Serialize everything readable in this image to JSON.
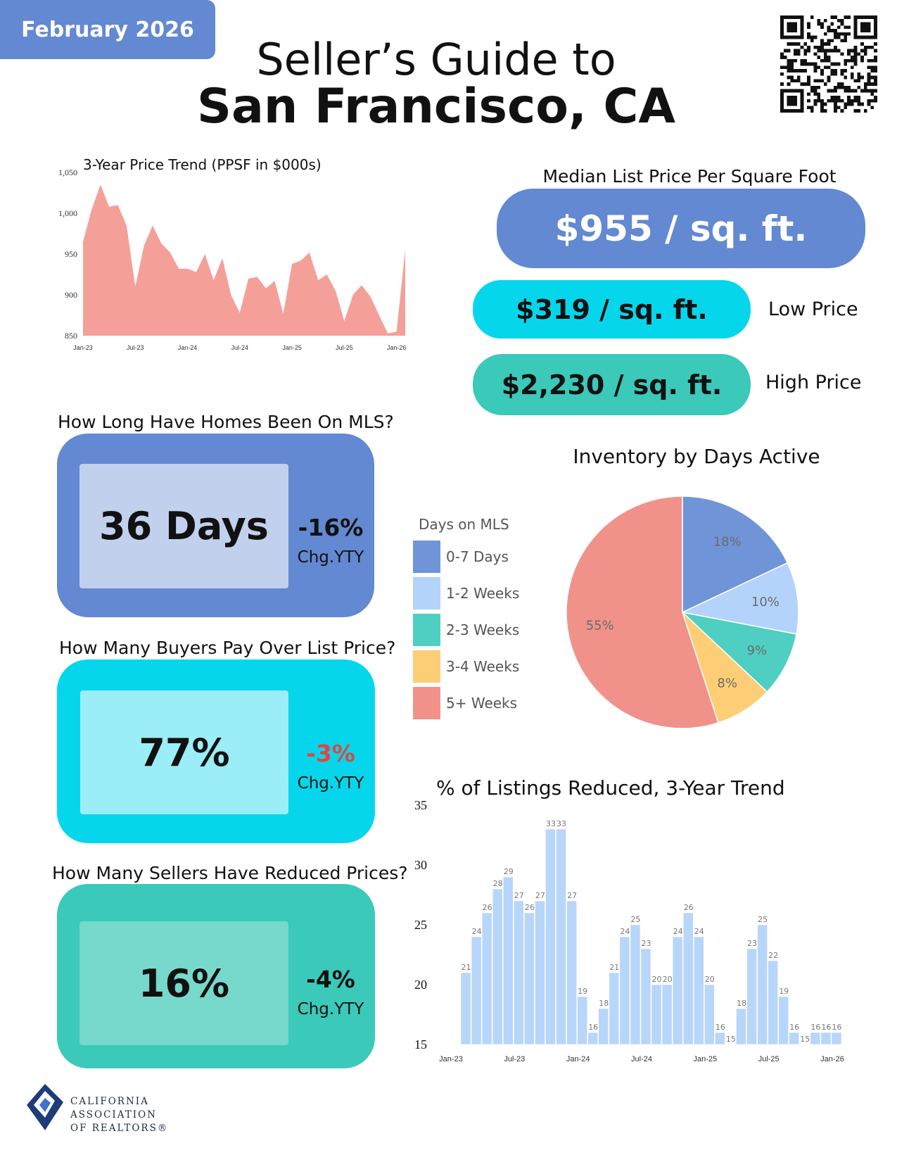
{
  "header": {
    "date": "February 2026",
    "title_line1": "Seller’s Guide to",
    "title_line2": "San Francisco, CA"
  },
  "median_price": {
    "title": "Median List Price Per Square Foot",
    "median": "$955 / sq. ft.",
    "low": "$319 / sq. ft.",
    "low_label": "Low Price",
    "high": "$2,230 / sq. ft.",
    "high_label": "High Price"
  },
  "stats": {
    "days": {
      "question": "How Long Have Homes Been On MLS?",
      "value": "36 Days",
      "change": "-16%",
      "change_label": "Chg.YTY"
    },
    "over_list": {
      "question": "How Many Buyers Pay Over List Price?",
      "value": "77%",
      "change": "-3%",
      "change_label": "Chg.YTY"
    },
    "reduced": {
      "question": "How Many Sellers Have Reduced Prices?",
      "value": "16%",
      "change": "-4%",
      "change_label": "Chg.YTY"
    }
  },
  "colors": {
    "blue": "#6289d1",
    "cyan": "#06d6ec",
    "teal": "#3bc9b9",
    "negative": "#e0473f"
  },
  "logo": {
    "line1": "CALIFORNIA",
    "line2": "ASSOCIATION",
    "line3": "OF REALTORS®"
  },
  "chart_data": [
    {
      "type": "area",
      "title": "3-Year Price Trend (PPSF in $000s)",
      "ylim": [
        850,
        1050
      ],
      "yticks": [
        "850",
        "900",
        "950",
        "1,000",
        "1,050"
      ],
      "x_tick_labels": [
        "Jan-23",
        "Jul-23",
        "Jan-24",
        "Jul-24",
        "Jan-25",
        "Jul-25",
        "Jan-26"
      ],
      "x": [
        "Jan-23",
        "Feb-23",
        "Mar-23",
        "Apr-23",
        "May-23",
        "Jun-23",
        "Jul-23",
        "Aug-23",
        "Sep-23",
        "Oct-23",
        "Nov-23",
        "Dec-23",
        "Jan-24",
        "Feb-24",
        "Mar-24",
        "Apr-24",
        "May-24",
        "Jun-24",
        "Jul-24",
        "Aug-24",
        "Sep-24",
        "Oct-24",
        "Nov-24",
        "Dec-24",
        "Jan-25",
        "Feb-25",
        "Mar-25",
        "Apr-25",
        "May-25",
        "Jun-25",
        "Jul-25",
        "Aug-25",
        "Sep-25",
        "Oct-25",
        "Nov-25",
        "Dec-25",
        "Jan-26",
        "Feb-26"
      ],
      "values": [
        965,
        1005,
        1035,
        1008,
        1010,
        985,
        910,
        960,
        985,
        963,
        952,
        932,
        932,
        928,
        950,
        918,
        945,
        900,
        878,
        920,
        922,
        908,
        917,
        877,
        938,
        942,
        952,
        918,
        925,
        905,
        868,
        900,
        912,
        898,
        875,
        853,
        855,
        955
      ],
      "color": "#f4a099"
    },
    {
      "type": "pie",
      "title": "Inventory by Days Active",
      "legend_title": "Days on MLS",
      "labels": [
        "0-7 Days",
        "1-2 Weeks",
        "2-3 Weeks",
        "3-4 Weeks",
        "5+ Weeks"
      ],
      "values": [
        18,
        10,
        9,
        8,
        55
      ],
      "value_labels": [
        "18%",
        "10%",
        "9%",
        "8%",
        "55%"
      ],
      "colors": [
        "#6f95d8",
        "#b4d3fb",
        "#4fcfc2",
        "#fdce75",
        "#f0928a"
      ]
    },
    {
      "type": "bar",
      "title": "% of Listings Reduced, 3-Year Trend",
      "ylim": [
        15,
        35
      ],
      "yticks": [
        "15",
        "20",
        "25",
        "30",
        "35"
      ],
      "x_tick_labels": [
        "Jan-23",
        "Jul-23",
        "Jan-24",
        "Jul-24",
        "Jan-25",
        "Jul-25",
        "Jan-26"
      ],
      "values": [
        21,
        24,
        26,
        28,
        29,
        27,
        26,
        27,
        33,
        33,
        27,
        19,
        16,
        18,
        21,
        24,
        25,
        23,
        20,
        20,
        24,
        26,
        24,
        20,
        16,
        15,
        18,
        23,
        25,
        22,
        19,
        16,
        15,
        16,
        16,
        16
      ],
      "color": "#b8d6fa"
    }
  ]
}
